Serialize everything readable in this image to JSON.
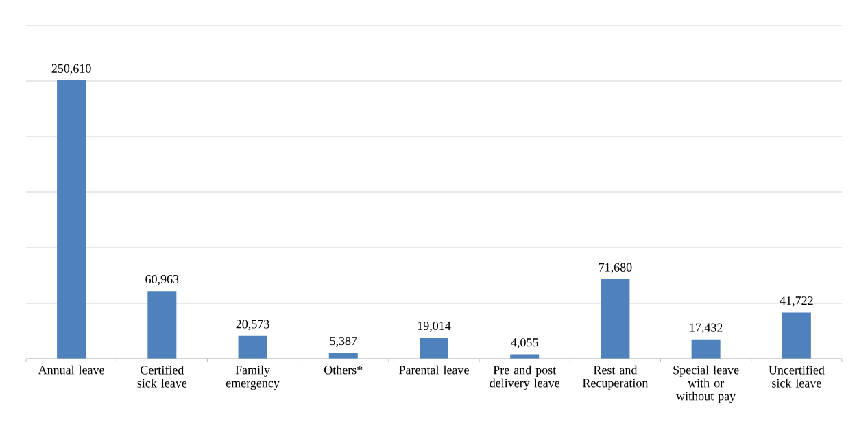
{
  "chart_data": {
    "type": "bar",
    "categories": [
      "Annual leave",
      "Certified sick leave",
      "Family emergency",
      "Others*",
      "Parental leave",
      "Pre and post delivery leave",
      "Rest and Recuperation",
      "Special leave with or without pay",
      "Uncertified sick leave"
    ],
    "values": [
      250610,
      60963,
      20573,
      5387,
      19014,
      4055,
      71680,
      17432,
      41722
    ],
    "value_labels": [
      "250,610",
      "60,963",
      "20,573",
      "5,387",
      "19,014",
      "4,055",
      "71,680",
      "17,432",
      "41,722"
    ],
    "color": "#4f81bd",
    "ylim": [
      0,
      300000
    ],
    "yticks": [
      {
        "value": 0,
        "label": null
      },
      {
        "value": 50000,
        "label": null
      },
      {
        "value": 100000,
        "label": null
      },
      {
        "value": 150000,
        "label": null
      },
      {
        "value": 200000,
        "label": null
      },
      {
        "value": 250000,
        "label": null
      },
      {
        "value": 300000,
        "label": null
      }
    ],
    "grid": "y",
    "tick_labels": "x"
  }
}
